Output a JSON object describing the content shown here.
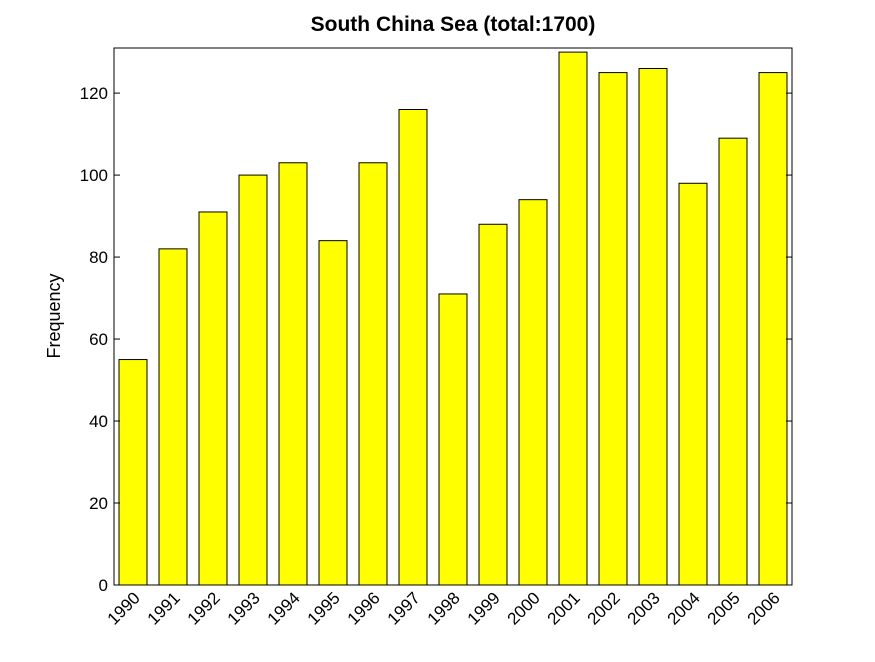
{
  "chart_data": {
    "type": "bar",
    "title": "South China Sea  (total:1700)",
    "xlabel": "",
    "ylabel": "Frequency",
    "categories": [
      "1990",
      "1991",
      "1992",
      "1993",
      "1994",
      "1995",
      "1996",
      "1997",
      "1998",
      "1999",
      "2000",
      "2001",
      "2002",
      "2003",
      "2004",
      "2005",
      "2006"
    ],
    "values": [
      55,
      82,
      91,
      100,
      103,
      84,
      103,
      116,
      71,
      88,
      94,
      130,
      125,
      126,
      98,
      109,
      125
    ],
    "ylim": [
      0,
      131
    ],
    "yticks": [
      0,
      20,
      40,
      60,
      80,
      100,
      120
    ],
    "grid": false,
    "bar_color": "#ffff00",
    "edge_color": "#000000"
  }
}
